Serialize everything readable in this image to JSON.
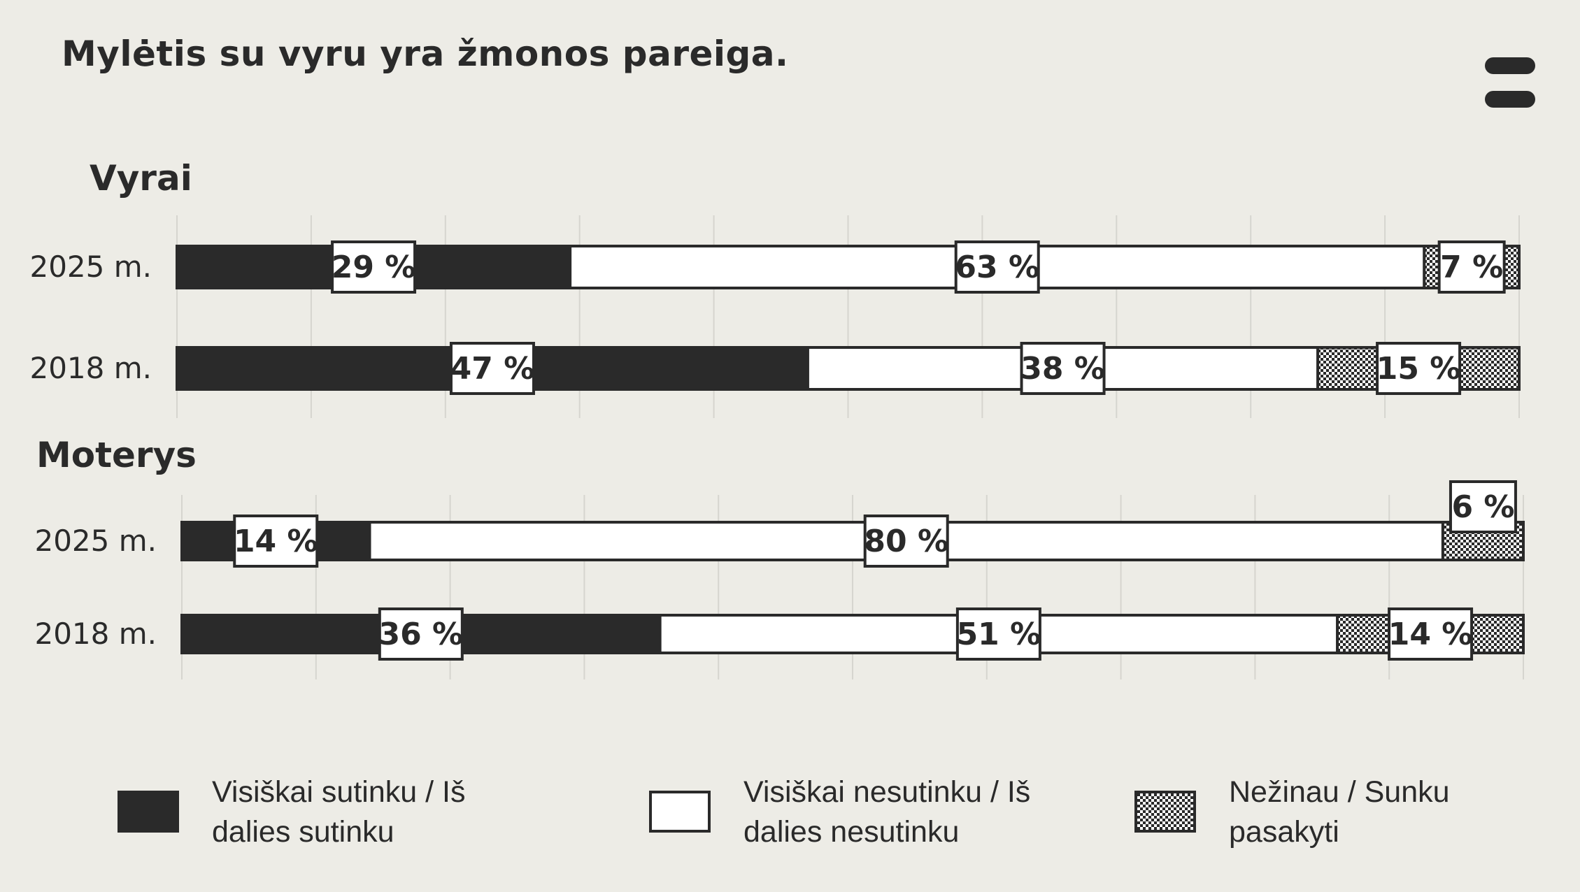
{
  "title": "Mylėtis su vyru yra žmonos pareiga.",
  "menu": {
    "icon": "menu-icon"
  },
  "colors": {
    "agree": "#2a2a2a",
    "disagree": "#ffffff",
    "unknown_pattern": "checkered",
    "background": "#edece6"
  },
  "legend": [
    {
      "key": "agree",
      "label": "Visiškai sutinku / Iš dalies sutinku"
    },
    {
      "key": "disagree",
      "label": "Visiškai nesutinku / Iš dalies nesutinku"
    },
    {
      "key": "unknown",
      "label": "Nežinau / Sunku pasakyti"
    }
  ],
  "chart_data": {
    "type": "bar",
    "orientation": "horizontal-stacked-100",
    "title": "Mylėtis su vyru yra žmonos pareiga.",
    "series_names": [
      "Visiškai sutinku / Iš dalies sutinku",
      "Visiškai nesutinku / Iš dalies nesutinku",
      "Nežinau / Sunku pasakyti"
    ],
    "groups": [
      {
        "name": "Vyrai",
        "rows": [
          {
            "label": "2025 m.",
            "values": [
              29,
              63,
              7
            ],
            "labels": [
              "29 %",
              "63 %",
              "7 %"
            ]
          },
          {
            "label": "2018 m.",
            "values": [
              47,
              38,
              15
            ],
            "labels": [
              "47 %",
              "38 %",
              "15 %"
            ]
          }
        ]
      },
      {
        "name": "Moterys",
        "rows": [
          {
            "label": "2025 m.",
            "values": [
              14,
              80,
              6
            ],
            "labels": [
              "14 %",
              "80 %",
              "6 %"
            ]
          },
          {
            "label": "2018 m.",
            "values": [
              36,
              51,
              14
            ],
            "labels": [
              "36 %",
              "51 %",
              "14 %"
            ]
          }
        ]
      }
    ],
    "grid": true,
    "legend_position": "bottom"
  }
}
